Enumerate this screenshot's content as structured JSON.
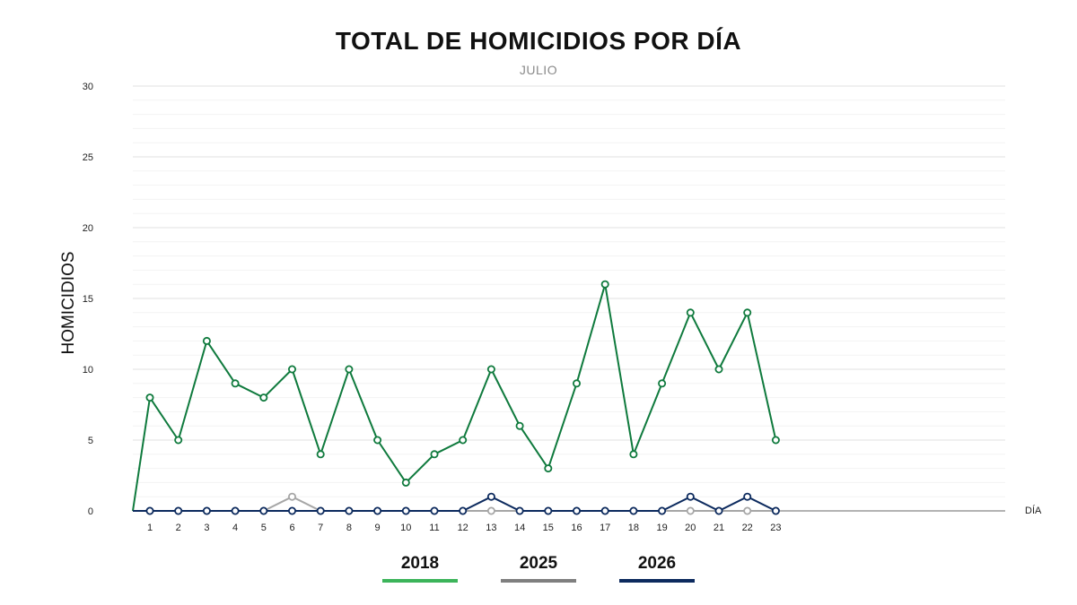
{
  "chart_data": {
    "type": "line",
    "title": "TOTAL DE HOMICIDIOS POR DÍA",
    "subtitle": "JULIO",
    "xlabel": "DÍA",
    "ylabel": "HOMICIDIOS",
    "categories": [
      "1",
      "2",
      "3",
      "4",
      "5",
      "6",
      "7",
      "8",
      "9",
      "10",
      "11",
      "12",
      "13",
      "14",
      "15",
      "16",
      "17",
      "18",
      "19",
      "20",
      "21",
      "22",
      "23"
    ],
    "ylim": [
      0,
      30
    ],
    "yticks": [
      0,
      5,
      10,
      15,
      20,
      25,
      30
    ],
    "grid": true,
    "legend_position": "bottom",
    "series": [
      {
        "name": "2018",
        "color": "#0f7a3d",
        "legend_color": "#3cb45a",
        "values": [
          8,
          5,
          12,
          9,
          8,
          10,
          4,
          10,
          5,
          2,
          4,
          5,
          10,
          6,
          3,
          9,
          16,
          4,
          9,
          14,
          10,
          14,
          5
        ]
      },
      {
        "name": "2025",
        "color": "#a6a6a6",
        "legend_color": "#7f7f7f",
        "values": [
          0,
          0,
          0,
          0,
          0,
          1,
          0,
          0,
          0,
          0,
          0,
          0,
          0,
          0,
          0,
          0,
          0,
          0,
          0,
          0,
          0,
          0,
          0
        ]
      },
      {
        "name": "2026",
        "color": "#0c2a5e",
        "legend_color": "#0c2a5e",
        "values": [
          0,
          0,
          0,
          0,
          0,
          0,
          0,
          0,
          0,
          0,
          0,
          0,
          1,
          0,
          0,
          0,
          0,
          0,
          0,
          1,
          0,
          1,
          0
        ]
      }
    ]
  }
}
